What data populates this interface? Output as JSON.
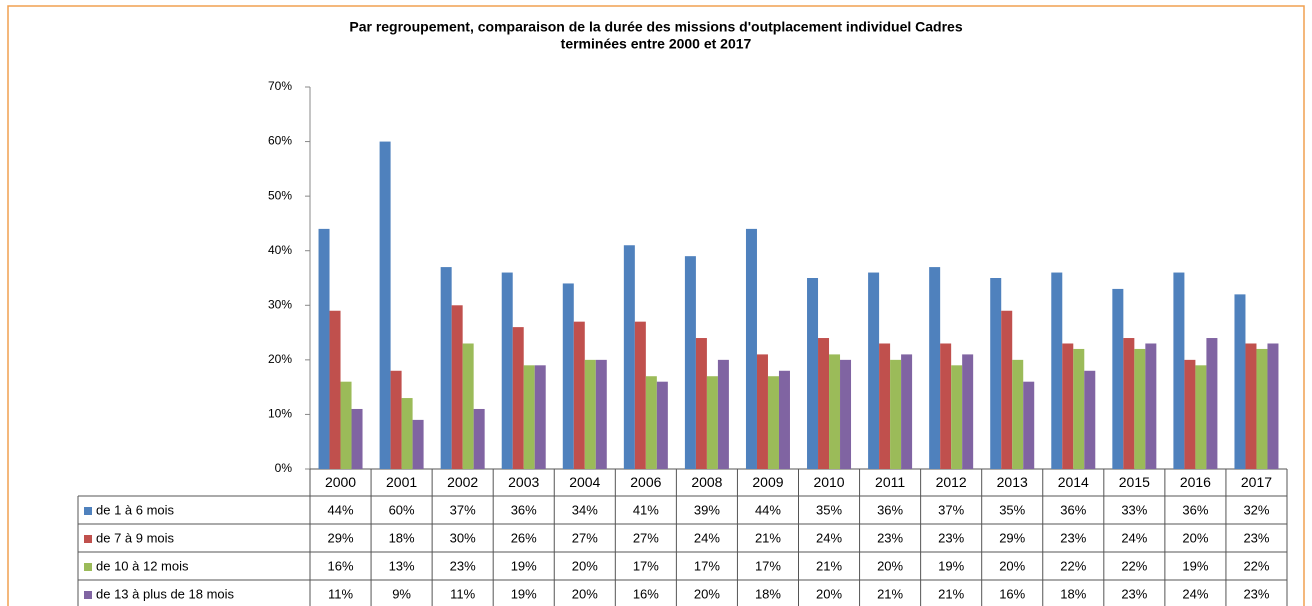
{
  "chart_data": {
    "type": "bar",
    "title": "Par regroupement, comparaison de la durée des missions d'outplacement individuel Cadres",
    "subtitle": "terminées entre 2000 et 2017",
    "categories": [
      "2000",
      "2001",
      "2002",
      "2003",
      "2004",
      "2006",
      "2008",
      "2009",
      "2010",
      "2011",
      "2012",
      "2013",
      "2014",
      "2015",
      "2016",
      "2017"
    ],
    "series": [
      {
        "name": "de 1 à 6 mois",
        "color": "#4f81bd",
        "values": [
          44,
          60,
          37,
          36,
          34,
          41,
          39,
          44,
          35,
          36,
          37,
          35,
          36,
          33,
          36,
          32
        ],
        "value_labels": [
          "44%",
          "60%",
          "37%",
          "36%",
          "34%",
          "41%",
          "39%",
          "44%",
          "35%",
          "36%",
          "37%",
          "35%",
          "36%",
          "33%",
          "36%",
          "32%"
        ]
      },
      {
        "name": "de 7 à 9 mois",
        "color": "#c0504d",
        "values": [
          29,
          18,
          30,
          26,
          27,
          27,
          24,
          21,
          24,
          23,
          23,
          29,
          23,
          24,
          20,
          23
        ],
        "value_labels": [
          "29%",
          "18%",
          "30%",
          "26%",
          "27%",
          "27%",
          "24%",
          "21%",
          "24%",
          "23%",
          "23%",
          "29%",
          "23%",
          "24%",
          "20%",
          "23%"
        ]
      },
      {
        "name": "de 10 à 12 mois",
        "color": "#9bbb59",
        "values": [
          16,
          13,
          23,
          19,
          20,
          17,
          17,
          17,
          21,
          20,
          19,
          20,
          22,
          22,
          19,
          22
        ],
        "value_labels": [
          "16%",
          "13%",
          "23%",
          "19%",
          "20%",
          "17%",
          "17%",
          "17%",
          "21%",
          "20%",
          "19%",
          "20%",
          "22%",
          "22%",
          "19%",
          "22%"
        ]
      },
      {
        "name": "de 13 à plus de 18 mois",
        "color": "#8064a2",
        "values": [
          11,
          9,
          11,
          19,
          20,
          16,
          20,
          18,
          20,
          21,
          21,
          16,
          18,
          23,
          24,
          23
        ],
        "value_labels": [
          "11%",
          "9%",
          "11%",
          "19%",
          "20%",
          "16%",
          "20%",
          "18%",
          "20%",
          "21%",
          "21%",
          "16%",
          "18%",
          "23%",
          "24%",
          "23%"
        ]
      }
    ],
    "ylim": [
      0,
      70
    ],
    "yticks": [
      {
        "value": 0,
        "label": "0%"
      },
      {
        "value": 10,
        "label": "10%"
      },
      {
        "value": 20,
        "label": "20%"
      },
      {
        "value": 30,
        "label": "30%"
      },
      {
        "value": 40,
        "label": "40%"
      },
      {
        "value": 50,
        "label": "50%"
      },
      {
        "value": 60,
        "label": "60%"
      },
      {
        "value": 70,
        "label": "70%"
      }
    ],
    "grid": false
  }
}
